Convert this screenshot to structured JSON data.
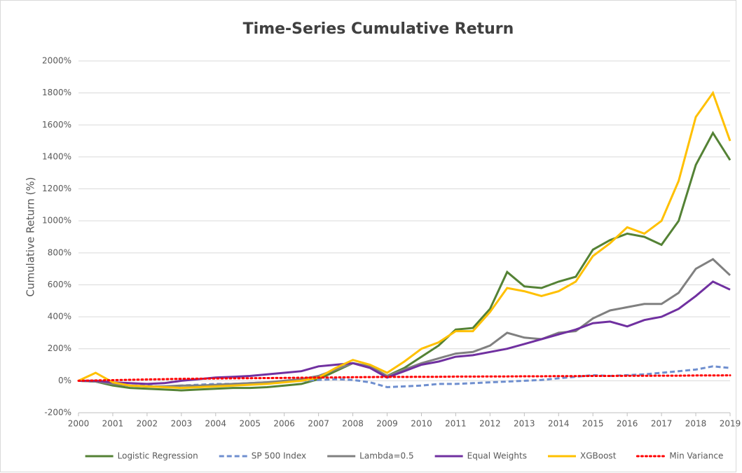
{
  "chart_data": {
    "type": "line",
    "title": "Time-Series Cumulative Return",
    "y_label": "Cumulative Return (%)",
    "x": [
      2000,
      2000.5,
      2001,
      2001.5,
      2002,
      2002.5,
      2003,
      2003.5,
      2004,
      2004.5,
      2005,
      2005.5,
      2006,
      2006.5,
      2007,
      2007.5,
      2008,
      2008.5,
      2009,
      2009.5,
      2010,
      2010.5,
      2011,
      2011.5,
      2012,
      2012.5,
      2013,
      2013.5,
      2014,
      2014.5,
      2015,
      2015.5,
      2016,
      2016.5,
      2017,
      2017.5,
      2018,
      2018.5,
      2019
    ],
    "series": [
      {
        "name": "Logistic Regression",
        "color": "#548235",
        "dash": "solid",
        "values": [
          0,
          -5,
          -30,
          -45,
          -50,
          -55,
          -60,
          -55,
          -50,
          -45,
          -45,
          -40,
          -30,
          -20,
          10,
          60,
          110,
          90,
          30,
          80,
          150,
          220,
          320,
          330,
          450,
          680,
          590,
          580,
          620,
          650,
          820,
          880,
          920,
          900,
          850,
          1000,
          1350,
          1550,
          1380
        ]
      },
      {
        "name": "SP 500 Index",
        "color": "#6f8fcf",
        "dash": "dashed",
        "values": [
          0,
          -5,
          -15,
          -30,
          -30,
          -40,
          -30,
          -25,
          -20,
          -20,
          -15,
          -10,
          -5,
          0,
          5,
          10,
          5,
          -10,
          -40,
          -35,
          -30,
          -20,
          -20,
          -15,
          -10,
          -5,
          0,
          5,
          15,
          25,
          35,
          30,
          35,
          40,
          50,
          60,
          70,
          90,
          80
        ]
      },
      {
        "name": "Lambda=0.5",
        "color": "#808080",
        "dash": "solid",
        "values": [
          0,
          -5,
          -20,
          -30,
          -35,
          -35,
          -30,
          -30,
          -25,
          -20,
          -15,
          -10,
          0,
          10,
          30,
          70,
          110,
          90,
          30,
          70,
          110,
          140,
          170,
          180,
          220,
          300,
          270,
          260,
          300,
          310,
          390,
          440,
          460,
          480,
          480,
          550,
          700,
          760,
          660
        ]
      },
      {
        "name": "Equal Weights",
        "color": "#7030a0",
        "dash": "solid",
        "values": [
          0,
          0,
          -10,
          -15,
          -20,
          -15,
          0,
          10,
          20,
          25,
          30,
          40,
          50,
          60,
          90,
          100,
          110,
          80,
          20,
          60,
          100,
          120,
          150,
          160,
          180,
          200,
          230,
          260,
          290,
          320,
          360,
          370,
          340,
          380,
          400,
          450,
          530,
          620,
          570
        ]
      },
      {
        "name": "XGBoost",
        "color": "#ffc000",
        "dash": "solid",
        "values": [
          0,
          50,
          -10,
          -30,
          -35,
          -40,
          -45,
          -40,
          -35,
          -30,
          -25,
          -20,
          -10,
          0,
          20,
          80,
          130,
          100,
          50,
          120,
          200,
          240,
          310,
          310,
          430,
          580,
          560,
          530,
          560,
          620,
          780,
          860,
          960,
          920,
          1000,
          1250,
          1650,
          1800,
          1500
        ]
      },
      {
        "name": "Min Variance",
        "color": "#ff0000",
        "dash": "dotted",
        "values": [
          0,
          2,
          4,
          6,
          8,
          10,
          12,
          13,
          14,
          15,
          16,
          17,
          18,
          19,
          20,
          21,
          22,
          23,
          24,
          24,
          25,
          25,
          26,
          26,
          27,
          27,
          28,
          28,
          29,
          29,
          30,
          30,
          31,
          31,
          32,
          32,
          33,
          33,
          34
        ]
      }
    ],
    "xlim": [
      2000,
      2019
    ],
    "xticks": [
      2000,
      2001,
      2002,
      2003,
      2004,
      2005,
      2006,
      2007,
      2008,
      2009,
      2010,
      2011,
      2012,
      2013,
      2014,
      2015,
      2016,
      2017,
      2018,
      2019
    ],
    "ylim": [
      -200,
      2000
    ],
    "yticks": [
      {
        "value": -200,
        "label": "-200%"
      },
      {
        "value": 0,
        "label": "0%"
      },
      {
        "value": 200,
        "label": "200%"
      },
      {
        "value": 400,
        "label": "400%"
      },
      {
        "value": 600,
        "label": "600%"
      },
      {
        "value": 800,
        "label": "800%"
      },
      {
        "value": 1000,
        "label": "1000%"
      },
      {
        "value": 1200,
        "label": "1200%"
      },
      {
        "value": 1400,
        "label": "1400%"
      },
      {
        "value": 1600,
        "label": "1600%"
      },
      {
        "value": 1800,
        "label": "1800%"
      },
      {
        "value": 2000,
        "label": "2000%"
      }
    ],
    "grid": true,
    "legend": "bottom"
  }
}
